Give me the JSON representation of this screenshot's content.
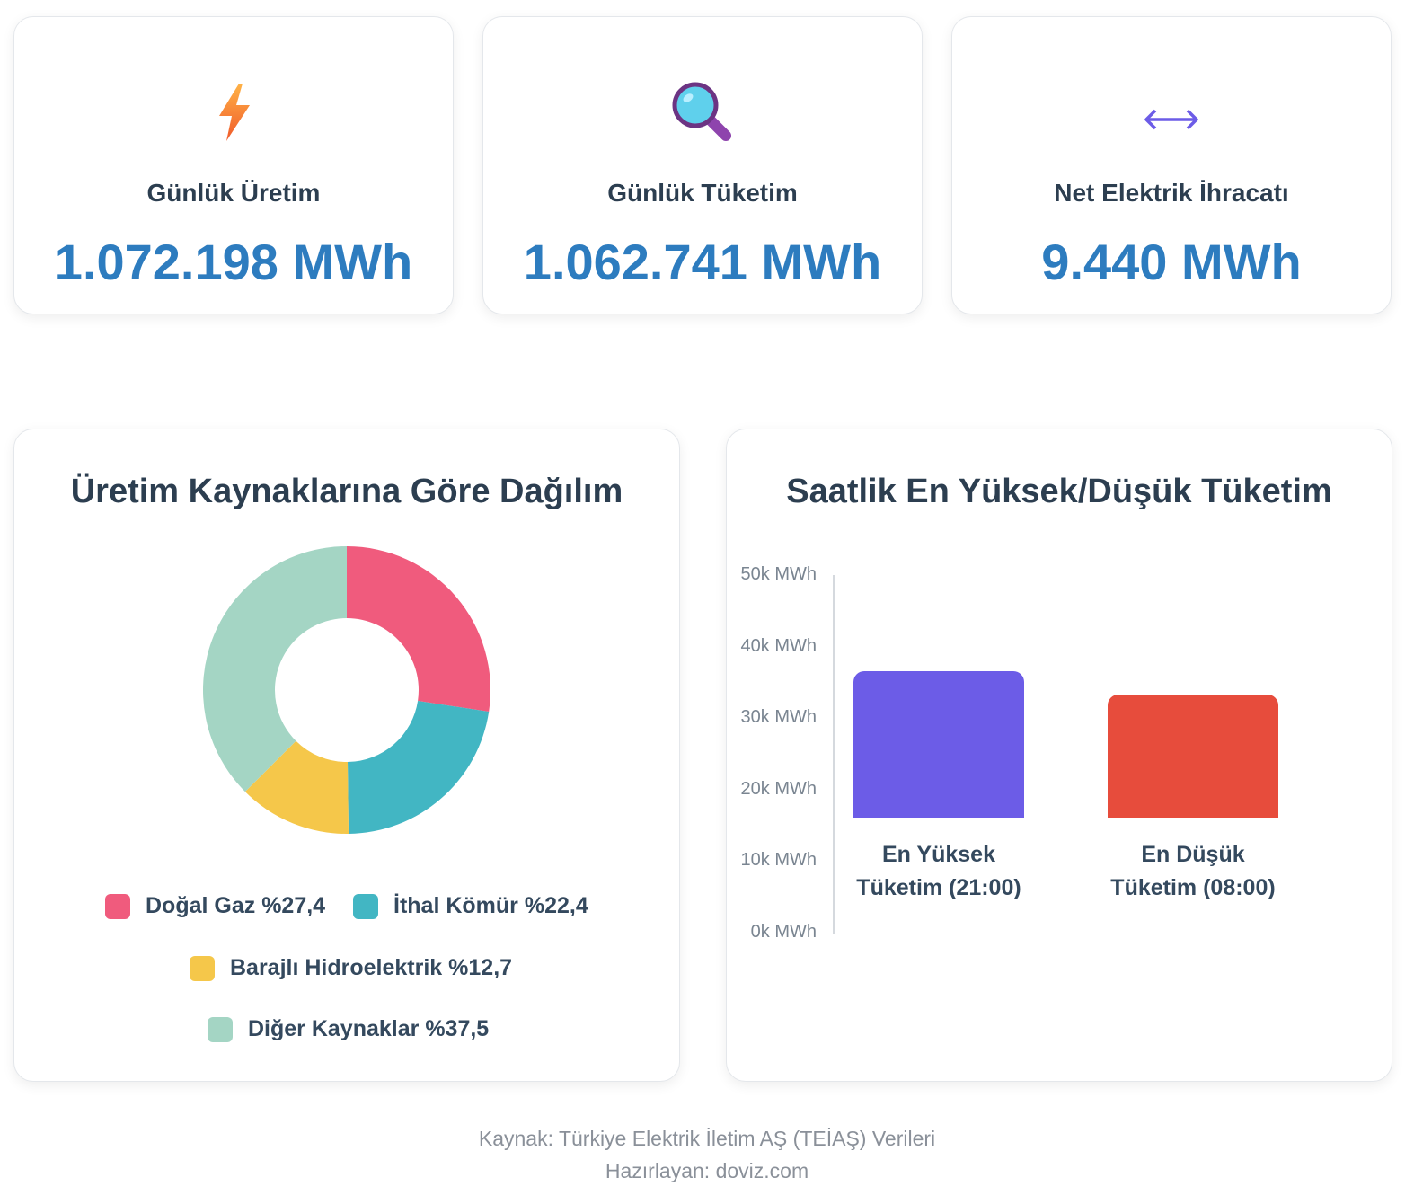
{
  "stats": [
    {
      "label": "Günlük Üretim",
      "value": "1.072.198 MWh",
      "icon": "lightning-icon"
    },
    {
      "label": "Günlük Tüketim",
      "value": "1.062.741 MWh",
      "icon": "magnifier-icon"
    },
    {
      "label": "Net Elektrik İhracatı",
      "value": "9.440 MWh",
      "icon": "left-right-arrow-icon"
    }
  ],
  "chart_data": [
    {
      "type": "pie",
      "title": "Üretim Kaynaklarına Göre Dağılım",
      "donut": true,
      "categories": [
        "Doğal Gaz",
        "İthal Kömür",
        "Barajlı Hidroelektrik",
        "Diğer Kaynaklar"
      ],
      "values": [
        27.4,
        22.4,
        12.7,
        37.5
      ],
      "colors": [
        "#f05b7d",
        "#42b6c3",
        "#f5c74a",
        "#a4d5c4"
      ],
      "legend": [
        {
          "name": "Doğal Gaz",
          "value": "%27,4",
          "color": "#f05b7d"
        },
        {
          "name": "İthal Kömür",
          "value": "%22,4",
          "color": "#42b6c3"
        },
        {
          "name": "Barajlı Hidroelektrik",
          "value": "%12,7",
          "color": "#f5c74a"
        },
        {
          "name": "Diğer Kaynaklar",
          "value": "%37,5",
          "color": "#a4d5c4"
        }
      ],
      "legend_position": "bottom"
    },
    {
      "type": "bar",
      "title": "Saatlik En Yüksek/Düşük Tüketim",
      "categories": [
        [
          "En Yüksek",
          "Tüketim (21:00)"
        ],
        [
          "En Düşük",
          "Tüketim (08:00)"
        ]
      ],
      "values": [
        36500,
        33300
      ],
      "colors": [
        "#6c5ce7",
        "#e74c3c"
      ],
      "ylim": [
        0,
        50000
      ],
      "yticks": [
        {
          "value": 50000,
          "label": "50k MWh"
        },
        {
          "value": 40000,
          "label": "40k MWh"
        },
        {
          "value": 30000,
          "label": "30k MWh"
        },
        {
          "value": 20000,
          "label": "20k MWh"
        },
        {
          "value": 10000,
          "label": "10k MWh"
        },
        {
          "value": 0,
          "label": "0k MWh"
        }
      ],
      "grid": false
    }
  ],
  "footer": {
    "source": "Kaynak: Türkiye Elektrik İletim AŞ (TEİAŞ) Verileri",
    "author": "Hazırlayan: doviz.com"
  }
}
